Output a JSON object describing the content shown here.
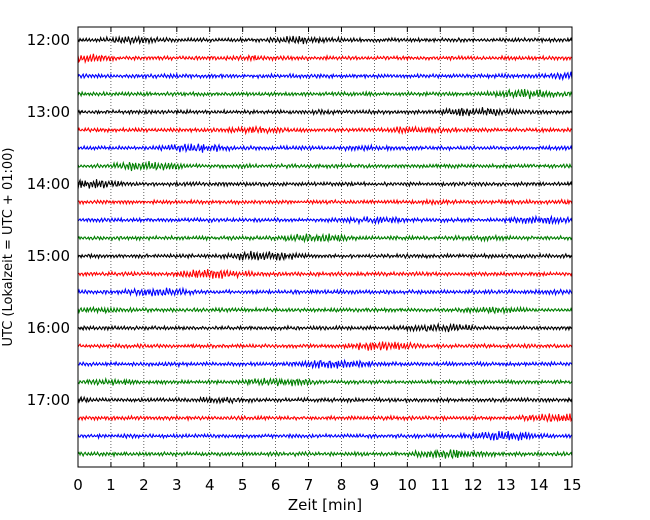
{
  "chart_data": {
    "type": "line",
    "title": "",
    "xlabel": "Zeit  [min]",
    "ylabel": "UTC (Lokalzeit = UTC + 01:00)",
    "xlim": [
      0,
      15
    ],
    "xticks": [
      "0",
      "1",
      "2",
      "3",
      "4",
      "5",
      "6",
      "7",
      "8",
      "9",
      "10",
      "11",
      "12",
      "13",
      "14",
      "15"
    ],
    "ytick_labels": [
      "12:00",
      "13:00",
      "14:00",
      "15:00",
      "16:00",
      "17:00"
    ],
    "trace_start_times": [
      "12:00",
      "12:15",
      "12:30",
      "12:45",
      "13:00",
      "13:15",
      "13:30",
      "13:45",
      "14:00",
      "14:15",
      "14:30",
      "14:45",
      "15:00",
      "15:15",
      "15:30",
      "15:45",
      "16:00",
      "16:15",
      "16:30",
      "16:45",
      "17:00",
      "17:15",
      "17:30",
      "17:45"
    ],
    "trace_colors": [
      "#000000",
      "#ff0000",
      "#0000ff",
      "#007f00"
    ],
    "trace_minutes_per_row": 15,
    "vertical_grid": "dotted",
    "legend": "none"
  }
}
